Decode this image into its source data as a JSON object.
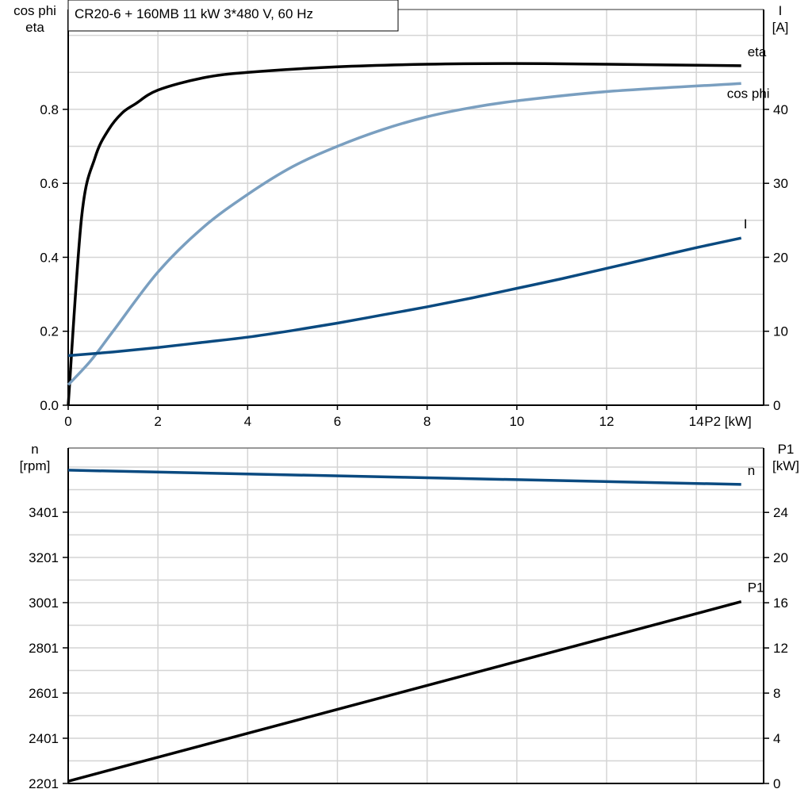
{
  "title": "CR20-6 + 160MB   11 kW   3*480 V, 60 Hz",
  "chart_data": [
    {
      "type": "line",
      "xlabel": "P2 [kW]",
      "xlim": [
        0,
        15.5
      ],
      "xticks": [
        "0",
        "2",
        "4",
        "6",
        "8",
        "10",
        "12",
        "14"
      ],
      "ylabel_left": [
        "cos phi",
        "eta"
      ],
      "ylim_left": [
        0,
        1.07
      ],
      "yticks_left": [
        "0.0",
        "0.2",
        "0.4",
        "0.6",
        "0.8"
      ],
      "ylabel_right": [
        "I",
        "[A]"
      ],
      "ylim_right": [
        0,
        53.5
      ],
      "yticks_right": [
        "0",
        "10",
        "20",
        "30",
        "40"
      ],
      "grid": true,
      "series": [
        {
          "name": "eta",
          "axis": "left",
          "color": "#000000",
          "x": [
            0,
            0.3,
            0.6,
            0.9,
            1.2,
            1.5,
            2,
            3,
            4,
            6,
            8,
            10,
            12,
            15
          ],
          "y": [
            0,
            0.51,
            0.67,
            0.745,
            0.79,
            0.815,
            0.852,
            0.885,
            0.9,
            0.915,
            0.922,
            0.924,
            0.922,
            0.918
          ]
        },
        {
          "name": "cos phi",
          "axis": "left",
          "color": "#7a9fc0",
          "x": [
            0,
            0.5,
            1,
            2,
            3,
            4,
            5,
            6,
            7,
            8,
            9,
            10,
            12,
            15
          ],
          "y": [
            0.055,
            0.12,
            0.2,
            0.36,
            0.48,
            0.57,
            0.645,
            0.7,
            0.745,
            0.78,
            0.805,
            0.823,
            0.848,
            0.87
          ]
        },
        {
          "name": "I",
          "axis": "right",
          "color": "#0a4a80",
          "x": [
            0,
            1,
            2,
            3,
            4,
            5,
            6,
            7,
            8,
            9,
            10,
            11,
            12,
            13,
            14,
            15
          ],
          "y": [
            6.7,
            7.2,
            7.8,
            8.5,
            9.2,
            10.1,
            11.1,
            12.2,
            13.3,
            14.5,
            15.8,
            17.1,
            18.5,
            19.9,
            21.3,
            22.6
          ]
        }
      ]
    },
    {
      "type": "line",
      "xlim": [
        0,
        15.5
      ],
      "ylabel_left": [
        "n",
        "[rpm]"
      ],
      "ylim_left": [
        2201,
        3685
      ],
      "yticks_left": [
        "2201",
        "2401",
        "2601",
        "2801",
        "3001",
        "3201",
        "3401"
      ],
      "ylabel_right": [
        "P1",
        "[kW]"
      ],
      "ylim_right": [
        0,
        29.7
      ],
      "yticks_right": [
        "0",
        "4",
        "8",
        "12",
        "16",
        "20",
        "24"
      ],
      "grid": true,
      "series": [
        {
          "name": "n",
          "axis": "left",
          "color": "#0a4a80",
          "x": [
            0,
            15
          ],
          "y": [
            3587,
            3524
          ]
        },
        {
          "name": "P1",
          "axis": "right",
          "color": "#000000",
          "x": [
            0,
            15
          ],
          "y": [
            0.2,
            16.1
          ]
        }
      ]
    }
  ]
}
